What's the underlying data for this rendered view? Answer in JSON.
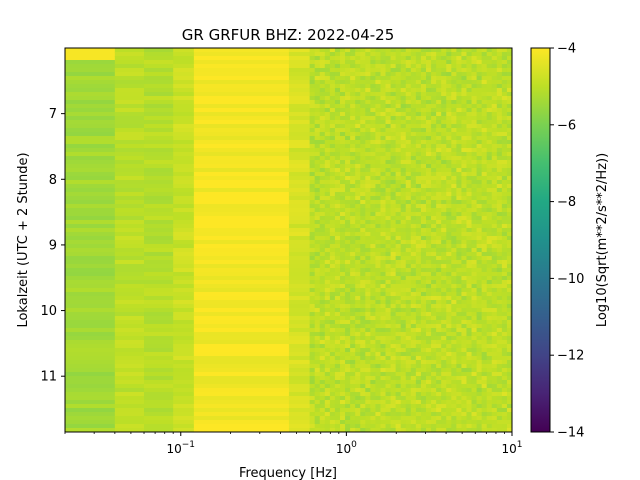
{
  "chart_data": {
    "type": "heatmap",
    "title": "GR GRFUR  BHZ: 2022-04-25",
    "xlabel": "Frequency [Hz]",
    "ylabel": "Lokalzeit (UTC + 2 Stunde)",
    "xscale": "log",
    "xlim": [
      0.02,
      10
    ],
    "x_ticks": [
      {
        "value": 0.1,
        "base": "10",
        "exp": "−1"
      },
      {
        "value": 1,
        "base": "10",
        "exp": "0"
      },
      {
        "value": 10,
        "base": "10",
        "exp": "1"
      }
    ],
    "ylim": [
      6.0,
      11.85
    ],
    "y_inverted": true,
    "y_ticks": [
      {
        "value": 7,
        "label": "7"
      },
      {
        "value": 8,
        "label": "8"
      },
      {
        "value": 9,
        "label": "9"
      },
      {
        "value": 10,
        "label": "10"
      },
      {
        "value": 11,
        "label": "11"
      }
    ],
    "colorbar": {
      "label": "Log10(Sqrt(m**2/s**2/Hz))",
      "colormap": "viridis",
      "range": [
        -14,
        -4
      ],
      "ticks": [
        {
          "value": -4,
          "label": "−4"
        },
        {
          "value": -6,
          "label": "−6"
        },
        {
          "value": -8,
          "label": "−8"
        },
        {
          "value": -10,
          "label": "−10"
        },
        {
          "value": -12,
          "label": "−12"
        },
        {
          "value": -14,
          "label": "−14"
        }
      ]
    },
    "frequency_bands": [
      {
        "f_min": 0.02,
        "f_max": 0.04,
        "value": -5.4
      },
      {
        "f_min": 0.04,
        "f_max": 0.06,
        "value": -5.0
      },
      {
        "f_min": 0.06,
        "f_max": 0.09,
        "value": -5.1
      },
      {
        "f_min": 0.09,
        "f_max": 0.12,
        "value": -4.8
      },
      {
        "f_min": 0.12,
        "f_max": 0.45,
        "value": -4.1
      },
      {
        "f_min": 0.45,
        "f_max": 0.6,
        "value": -4.6
      },
      {
        "f_min": 0.6,
        "f_max": 10,
        "value": -5.0
      }
    ],
    "grid": false
  }
}
